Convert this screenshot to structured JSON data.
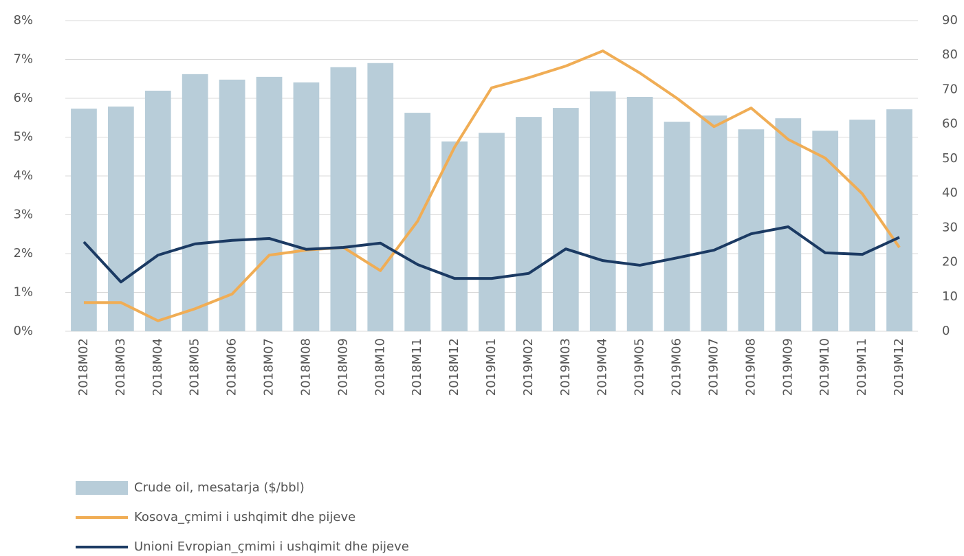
{
  "chart_data": {
    "type": "bar",
    "categories": [
      "2018M02",
      "2018M03",
      "2018M04",
      "2018M05",
      "2018M06",
      "2018M07",
      "2018M08",
      "2018M09",
      "2018M10",
      "2018M11",
      "2018M12",
      "2019M01",
      "2019M02",
      "2019M03",
      "2019M04",
      "2019M05",
      "2019M06",
      "2019M07",
      "2019M08",
      "2019M09",
      "2019M10",
      "2019M11",
      "2019M12"
    ],
    "series": [
      {
        "name": "Crude oil, mesatarja ($/bbl)",
        "type": "bar",
        "axis": "y2",
        "color": "#b8cdd9",
        "values": [
          64.5,
          65.1,
          69.7,
          74.5,
          72.9,
          73.7,
          72.1,
          76.5,
          77.7,
          63.3,
          55.0,
          57.5,
          62.1,
          64.7,
          69.5,
          67.9,
          60.7,
          62.5,
          58.5,
          61.7,
          58.1,
          61.3,
          64.3
        ]
      },
      {
        "name": "Kosova_çmimi i ushqimit dhe pijeve",
        "type": "line",
        "axis": "y",
        "color": "#f0ad55",
        "values": [
          0.74,
          0.74,
          0.27,
          0.58,
          0.96,
          1.96,
          2.09,
          2.16,
          1.56,
          2.83,
          4.74,
          6.27,
          6.53,
          6.83,
          7.22,
          6.65,
          6.0,
          5.27,
          5.75,
          4.94,
          4.46,
          3.54,
          2.16
        ]
      },
      {
        "name": "Unioni Evropian_çmimi i ushqimit dhe pijeve",
        "type": "line",
        "axis": "y",
        "color": "#1b3a63",
        "values": [
          2.3,
          1.27,
          1.96,
          2.25,
          2.34,
          2.39,
          2.11,
          2.16,
          2.27,
          1.72,
          1.36,
          1.36,
          1.49,
          2.12,
          1.82,
          1.7,
          1.89,
          2.09,
          2.51,
          2.69,
          2.02,
          1.98,
          2.42
        ]
      }
    ],
    "ylim": [
      0,
      8
    ],
    "yticks": [
      {
        "value": 0,
        "label": "0%"
      },
      {
        "value": 1,
        "label": "1%"
      },
      {
        "value": 2,
        "label": "2%"
      },
      {
        "value": 3,
        "label": "3%"
      },
      {
        "value": 4,
        "label": "4%"
      },
      {
        "value": 5,
        "label": "5%"
      },
      {
        "value": 6,
        "label": "6%"
      },
      {
        "value": 7,
        "label": "7%"
      },
      {
        "value": 8,
        "label": "8%"
      }
    ],
    "y2lim": [
      0,
      90
    ],
    "y2ticks": [
      0,
      10,
      20,
      30,
      40,
      50,
      60,
      70,
      80,
      90
    ],
    "grid": true,
    "legend": "bottom-left"
  }
}
